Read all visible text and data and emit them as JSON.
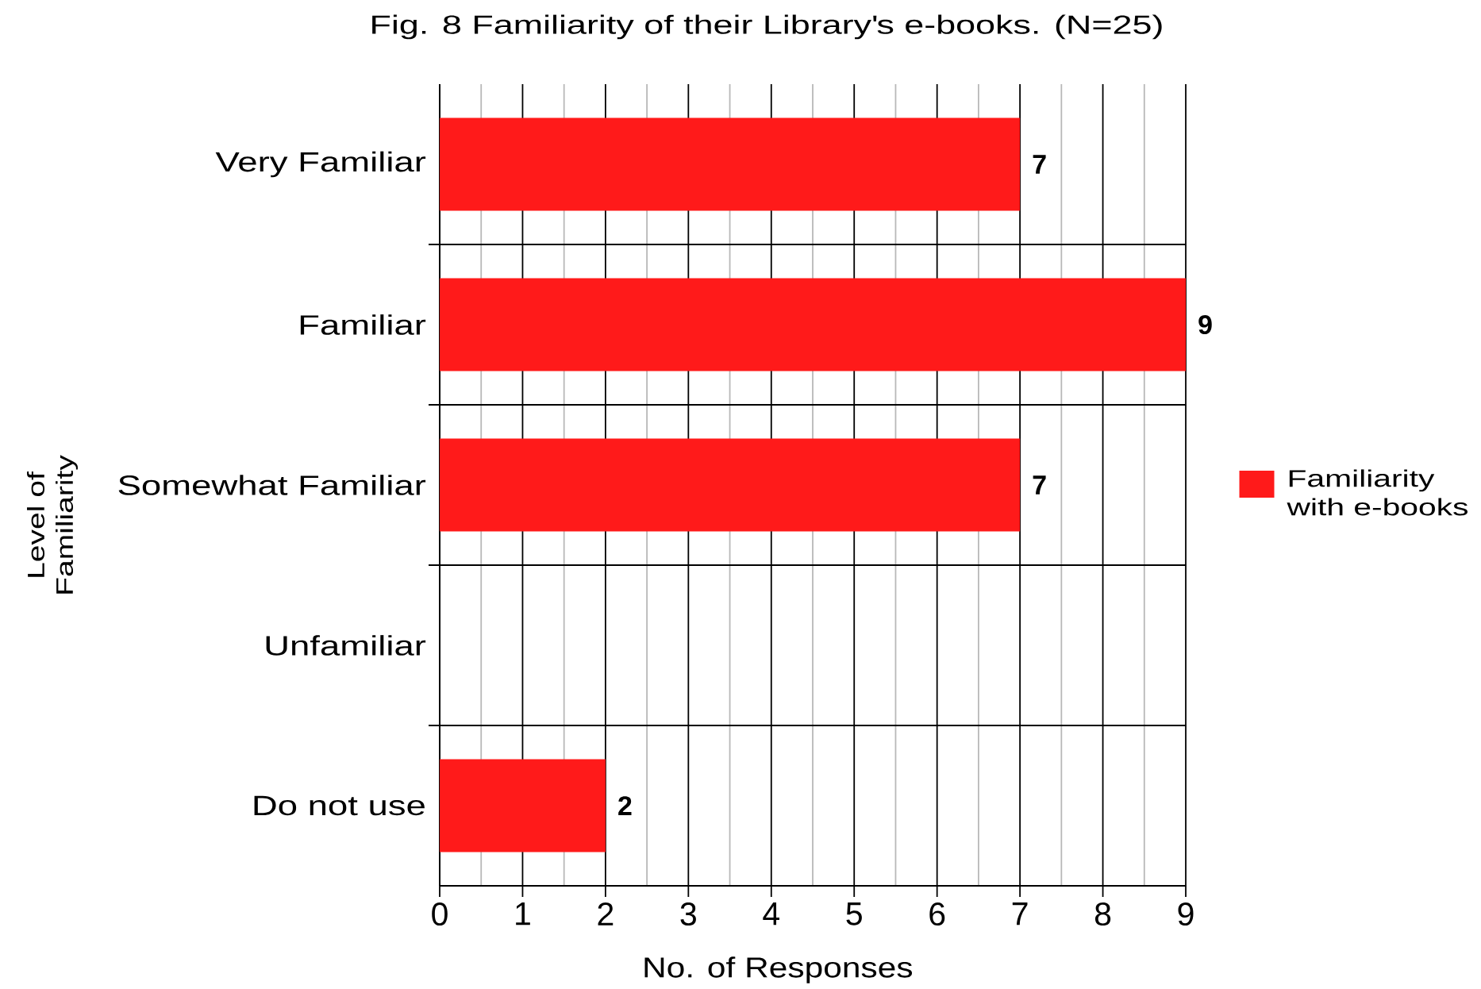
{
  "chart_data": {
    "type": "bar",
    "orientation": "horizontal",
    "title": "Fig. 8 Familiarity of their Library's e-books. (N=25)",
    "xlabel": "No. of Responses",
    "ylabel": "Level of Familiarity",
    "categories": [
      "Very Familiar",
      "Familiar",
      "Somewhat Familiar",
      "Unfamiliar",
      "Do not use"
    ],
    "series": [
      {
        "name": "Familiarity with e-books",
        "color": "#ff1a1a",
        "values": [
          7,
          9,
          7,
          0,
          2
        ],
        "value_labels": [
          "7",
          "9",
          "7",
          null,
          "2"
        ]
      }
    ],
    "xlim": [
      0,
      9
    ],
    "xticks": [
      0,
      {
        "value": 0.5,
        "label": null
      },
      1,
      {
        "value": 1.5,
        "label": null
      },
      2,
      {
        "value": 2.5,
        "label": null
      },
      3,
      {
        "value": 3.5,
        "label": null
      },
      4,
      {
        "value": 4.5,
        "label": null
      },
      5,
      {
        "value": 5.5,
        "label": null
      },
      6,
      {
        "value": 6.5,
        "label": null
      },
      7,
      {
        "value": 7.5,
        "label": null
      },
      8,
      {
        "value": 8.5,
        "label": null
      },
      9
    ],
    "grid": true,
    "legend": "right"
  }
}
